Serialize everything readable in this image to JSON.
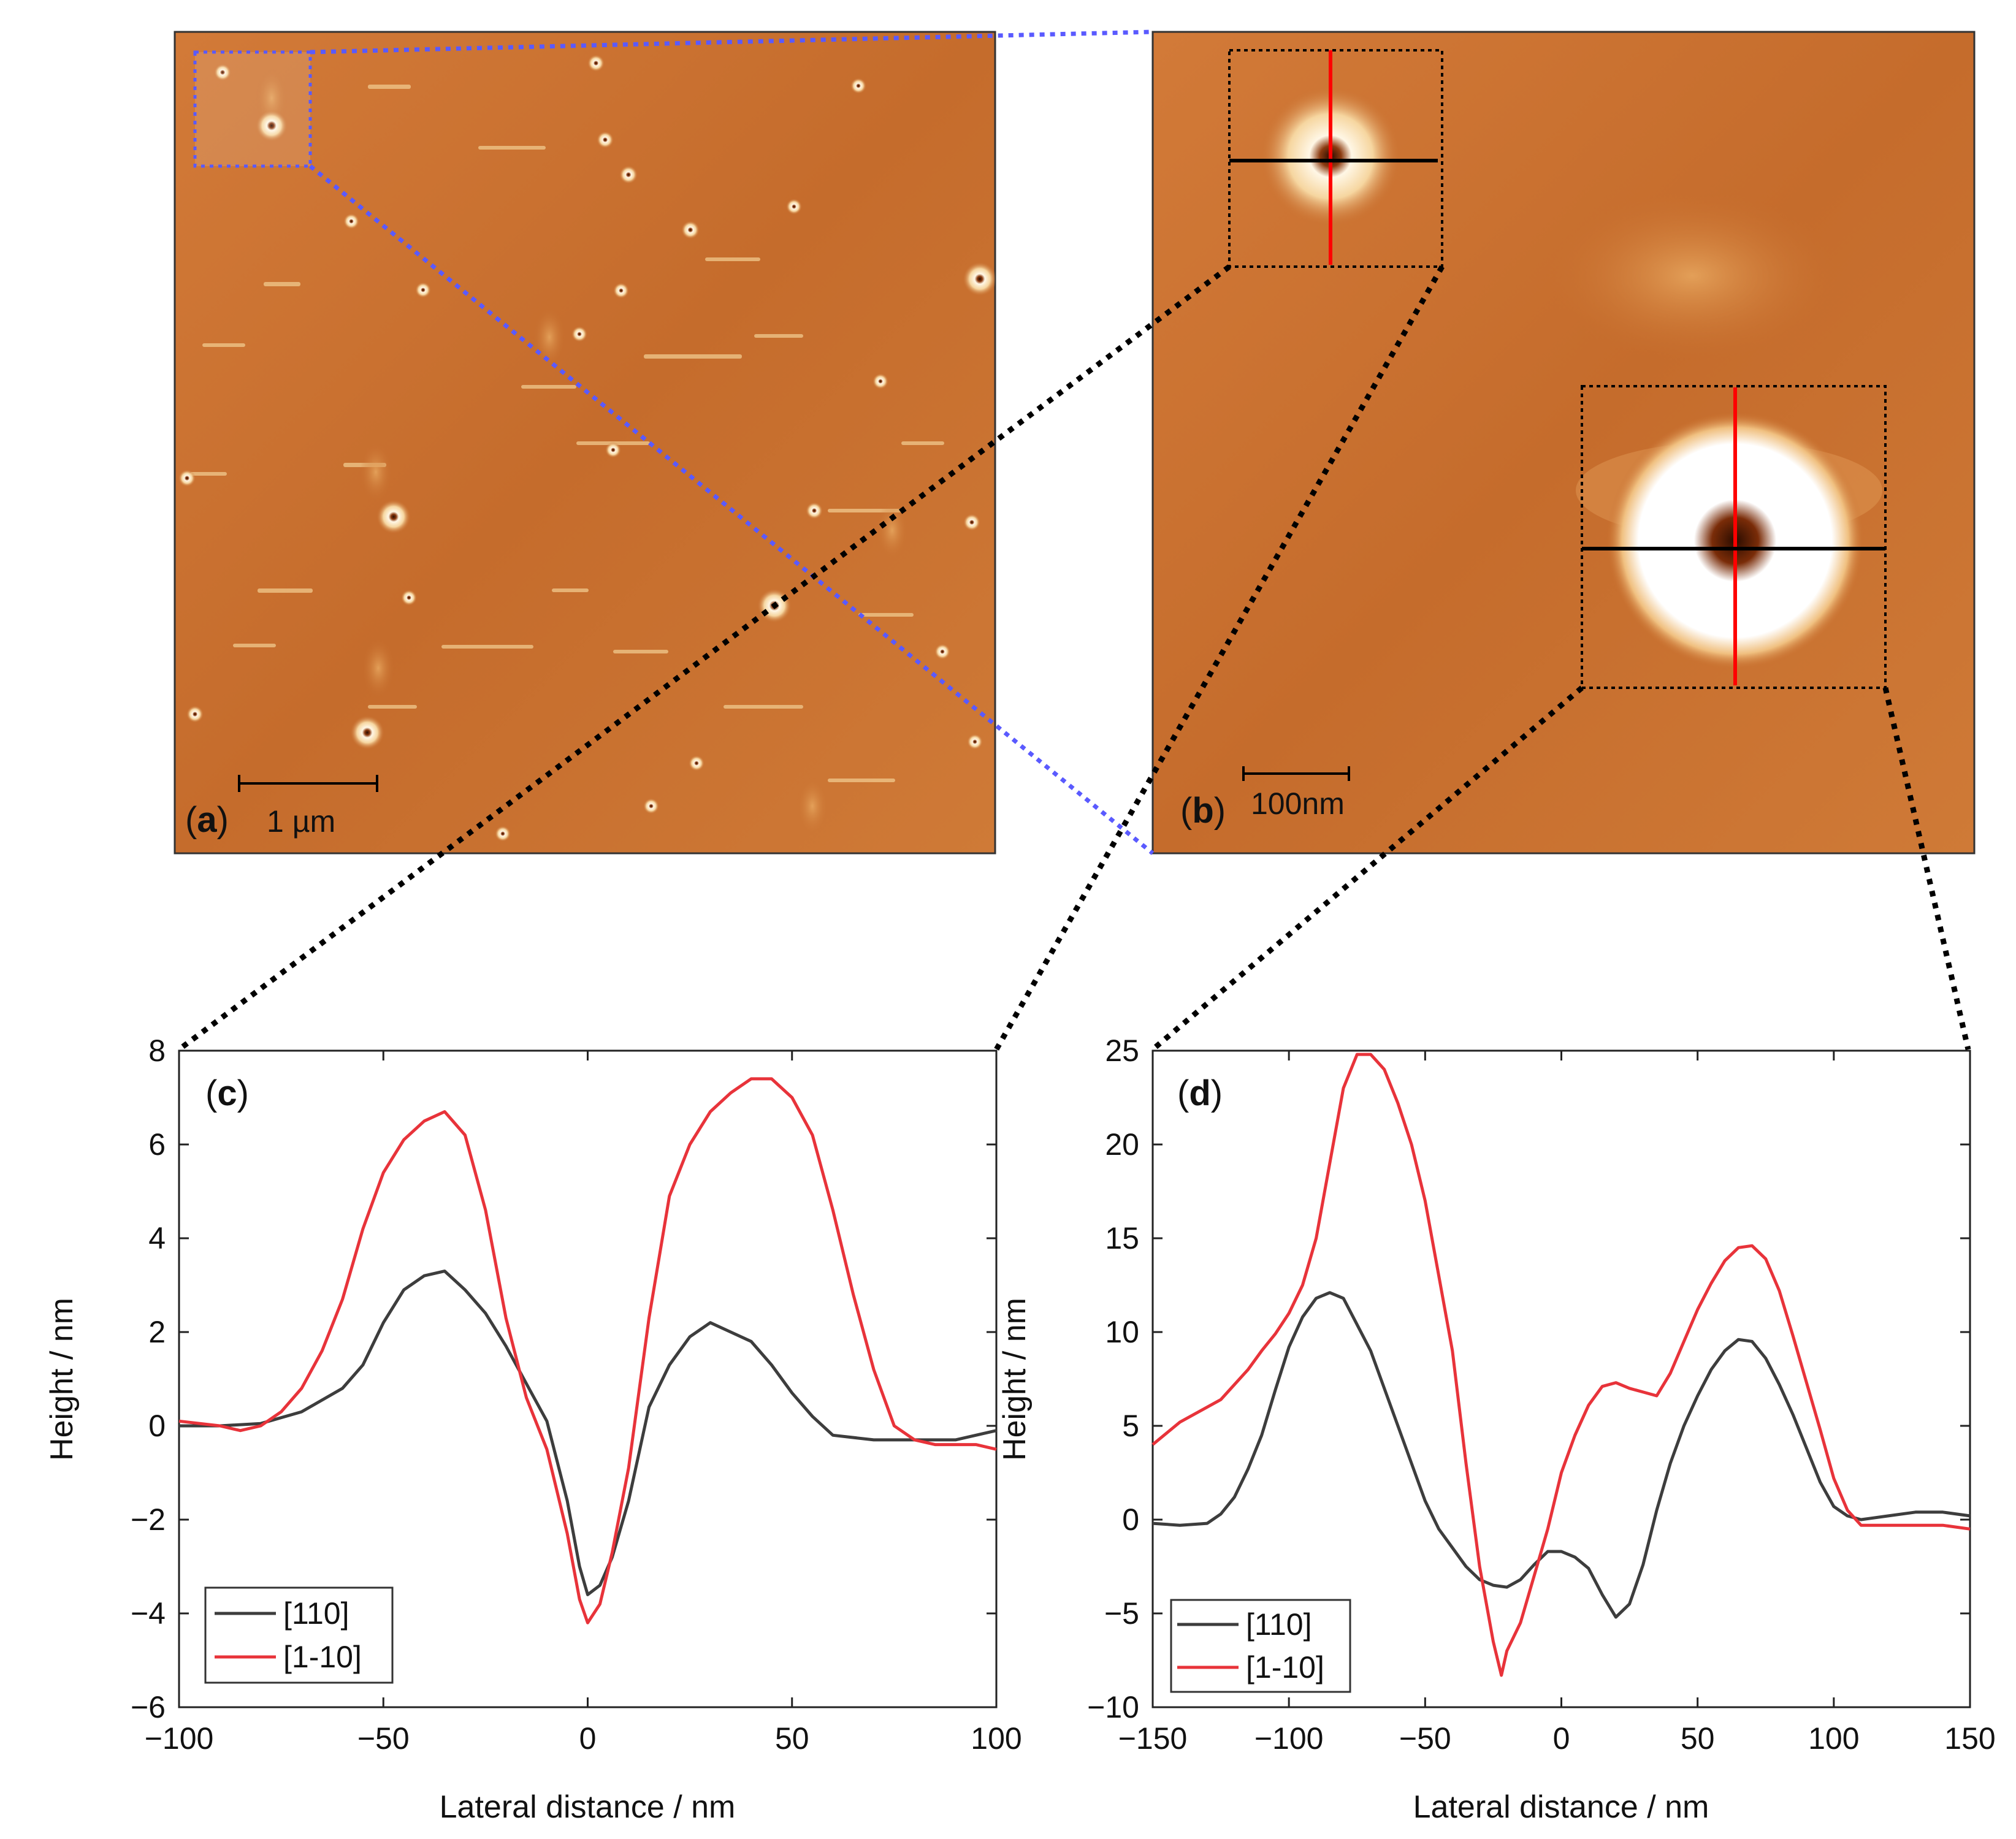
{
  "panels": {
    "a": {
      "label": "a",
      "scalebar": "1 µm"
    },
    "b": {
      "label": "b",
      "scalebar": "100nm"
    }
  },
  "colors": {
    "afm_base": "#c8702f",
    "afm_bright": "#ffffff",
    "afm_light": "#e9b06e",
    "zoom_blue": "#5a5aff",
    "zoom_black": "#000000",
    "series_110": "#3d3d3d",
    "series_1_10": "#e8333a",
    "profile_red": "#ff0000",
    "profile_black": "#000000"
  },
  "chart_data": [
    {
      "id": "c",
      "panel_label": "c",
      "type": "line",
      "xlabel": "Lateral distance / nm",
      "ylabel": "Height / nm",
      "xlim": [
        -100,
        100
      ],
      "ylim": [
        -6,
        8
      ],
      "xticks": [
        -100,
        -50,
        0,
        50,
        100
      ],
      "yticks": [
        -6,
        -4,
        -2,
        0,
        2,
        4,
        6,
        8
      ],
      "legend_position": "bottom-left",
      "series": [
        {
          "name": "[110]",
          "color": "#3d3d3d",
          "x": [
            -100,
            -90,
            -80,
            -70,
            -60,
            -55,
            -50,
            -45,
            -40,
            -35,
            -30,
            -25,
            -20,
            -15,
            -10,
            -5,
            -2,
            0,
            3,
            6,
            10,
            15,
            20,
            25,
            30,
            35,
            40,
            45,
            50,
            55,
            60,
            70,
            80,
            90,
            100
          ],
          "y": [
            0,
            0,
            0.05,
            0.3,
            0.8,
            1.3,
            2.2,
            2.9,
            3.2,
            3.3,
            2.9,
            2.4,
            1.7,
            0.9,
            0.1,
            -1.6,
            -3.0,
            -3.6,
            -3.4,
            -2.8,
            -1.6,
            0.4,
            1.3,
            1.9,
            2.2,
            2.0,
            1.8,
            1.3,
            0.7,
            0.2,
            -0.2,
            -0.3,
            -0.3,
            -0.3,
            -0.1
          ]
        },
        {
          "name": "[1-10]",
          "color": "#e8333a",
          "x": [
            -100,
            -90,
            -85,
            -80,
            -75,
            -70,
            -65,
            -60,
            -55,
            -50,
            -45,
            -40,
            -35,
            -30,
            -25,
            -20,
            -15,
            -10,
            -5,
            -2,
            0,
            3,
            6,
            10,
            15,
            20,
            25,
            30,
            35,
            40,
            45,
            50,
            55,
            60,
            65,
            70,
            75,
            80,
            85,
            90,
            95,
            100
          ],
          "y": [
            0.1,
            0,
            -0.1,
            0,
            0.3,
            0.8,
            1.6,
            2.7,
            4.2,
            5.4,
            6.1,
            6.5,
            6.7,
            6.2,
            4.6,
            2.3,
            0.6,
            -0.5,
            -2.3,
            -3.7,
            -4.2,
            -3.8,
            -2.7,
            -0.9,
            2.3,
            4.9,
            6.0,
            6.7,
            7.1,
            7.4,
            7.4,
            7.0,
            6.2,
            4.6,
            2.8,
            1.2,
            0,
            -0.3,
            -0.4,
            -0.4,
            -0.4,
            -0.5
          ]
        }
      ]
    },
    {
      "id": "d",
      "panel_label": "d",
      "type": "line",
      "xlabel": "Lateral distance / nm",
      "ylabel": "Height / nm",
      "xlim": [
        -150,
        150
      ],
      "ylim": [
        -10,
        25
      ],
      "xticks": [
        -150,
        -100,
        -50,
        0,
        50,
        100,
        150
      ],
      "yticks": [
        -10,
        -5,
        0,
        5,
        10,
        15,
        20,
        25
      ],
      "legend_position": "bottom-left",
      "series": [
        {
          "name": "[110]",
          "color": "#3d3d3d",
          "x": [
            -150,
            -140,
            -130,
            -125,
            -120,
            -115,
            -110,
            -105,
            -100,
            -95,
            -90,
            -85,
            -80,
            -75,
            -70,
            -65,
            -60,
            -55,
            -50,
            -45,
            -40,
            -35,
            -30,
            -25,
            -20,
            -15,
            -10,
            -5,
            0,
            5,
            10,
            15,
            20,
            25,
            30,
            35,
            40,
            45,
            50,
            55,
            60,
            65,
            70,
            75,
            80,
            85,
            90,
            95,
            100,
            105,
            110,
            120,
            130,
            140,
            150
          ],
          "y": [
            -0.2,
            -0.3,
            -0.2,
            0.3,
            1.2,
            2.7,
            4.5,
            6.9,
            9.2,
            10.8,
            11.8,
            12.1,
            11.8,
            10.4,
            9.0,
            7.0,
            5.0,
            3.0,
            1.0,
            -0.5,
            -1.5,
            -2.5,
            -3.2,
            -3.5,
            -3.6,
            -3.2,
            -2.4,
            -1.7,
            -1.7,
            -2.0,
            -2.6,
            -4.0,
            -5.2,
            -4.5,
            -2.4,
            0.5,
            3.0,
            5.0,
            6.6,
            8.0,
            9.0,
            9.6,
            9.5,
            8.6,
            7.2,
            5.6,
            3.8,
            2.0,
            0.7,
            0.2,
            0,
            0.2,
            0.4,
            0.4,
            0.2
          ]
        },
        {
          "name": "[1-10]",
          "color": "#e8333a",
          "x": [
            -150,
            -140,
            -130,
            -125,
            -120,
            -115,
            -110,
            -105,
            -100,
            -95,
            -90,
            -85,
            -80,
            -75,
            -70,
            -65,
            -60,
            -55,
            -50,
            -45,
            -40,
            -35,
            -30,
            -25,
            -22,
            -20,
            -15,
            -10,
            -5,
            0,
            5,
            10,
            15,
            20,
            25,
            30,
            35,
            40,
            45,
            50,
            55,
            60,
            65,
            70,
            75,
            80,
            85,
            90,
            95,
            100,
            105,
            110,
            120,
            130,
            140,
            150
          ],
          "y": [
            4.0,
            5.2,
            6.0,
            6.4,
            7.2,
            8.0,
            9.0,
            9.9,
            11.0,
            12.5,
            15.0,
            19.0,
            23.0,
            24.8,
            24.8,
            24.0,
            22.2,
            20.0,
            17.0,
            13.0,
            9.0,
            3.0,
            -2.5,
            -6.5,
            -8.3,
            -7.0,
            -5.5,
            -3.0,
            -0.5,
            2.5,
            4.5,
            6.1,
            7.1,
            7.3,
            7.0,
            6.8,
            6.6,
            7.8,
            9.5,
            11.2,
            12.6,
            13.8,
            14.5,
            14.6,
            13.9,
            12.2,
            9.8,
            7.3,
            4.8,
            2.2,
            0.5,
            -0.3,
            -0.3,
            -0.3,
            -0.3,
            -0.5
          ]
        }
      ]
    }
  ]
}
